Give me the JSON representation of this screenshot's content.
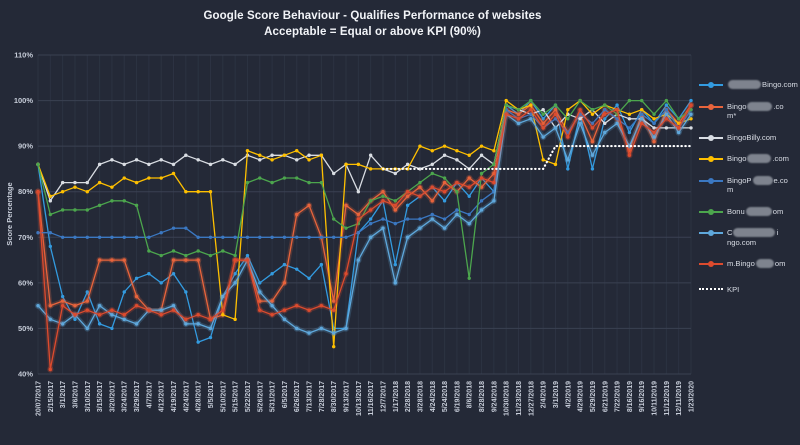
{
  "title": {
    "line1": "Google Score Behaviour - Qualifies Performance of websites",
    "line2": "Acceptable = Equal or above KPI (90%)"
  },
  "colors": {
    "background": "#242937",
    "gridline_horizontal": "#3a4152",
    "gridline_vertical": "#2c3342",
    "axis_text": "#c7cdd9",
    "title_text": "#f2f4f8",
    "kpi_line": "#ffffff"
  },
  "axes": {
    "y_label": "Score Percentage",
    "y_tick_labels": [
      "40%",
      "50%",
      "60%",
      "70%",
      "80%",
      "90%",
      "100%",
      "110%"
    ]
  },
  "legend": {
    "items": [
      {
        "name": "bingo-com",
        "color": "#339be0",
        "type": "series",
        "segments": [
          [
            "blur",
            33
          ],
          [
            "text",
            "Bingo.com"
          ]
        ]
      },
      {
        "name": "bingo-a-com",
        "color": "#e8643c",
        "type": "series",
        "segments": [
          [
            "text",
            "Bingo"
          ],
          [
            "blur",
            25
          ],
          [
            "text",
            ".co"
          ],
          [
            "br"
          ],
          [
            "text",
            "m*"
          ]
        ]
      },
      {
        "name": "bingobilly-com",
        "color": "#d9dde3",
        "type": "series",
        "segments": [
          [
            "text",
            "BingoBilly.com"
          ]
        ]
      },
      {
        "name": "bingo-x-com",
        "color": "#ffc000",
        "type": "series",
        "segments": [
          [
            "text",
            "Bingo"
          ],
          [
            "blur",
            24
          ],
          [
            "text",
            ".com"
          ]
        ]
      },
      {
        "name": "bingopalace-com",
        "color": "#3b78c2",
        "type": "series",
        "segments": [
          [
            "text",
            "BingoP"
          ],
          [
            "blur",
            20
          ],
          [
            "text",
            "e.co"
          ],
          [
            "br"
          ],
          [
            "text",
            "m"
          ]
        ]
      },
      {
        "name": "bonus-com",
        "color": "#4ca64d",
        "type": "series",
        "segments": [
          [
            "text",
            "Bonu"
          ],
          [
            "blur",
            26
          ],
          [
            "text",
            "om"
          ]
        ]
      },
      {
        "name": "c-bingo-com",
        "color": "#5fa8dc",
        "type": "series",
        "segments": [
          [
            "text",
            "C"
          ],
          [
            "blur",
            42
          ],
          [
            "text",
            "i"
          ],
          [
            "br"
          ],
          [
            "text",
            "ngo.com"
          ]
        ]
      },
      {
        "name": "m-bingo-com",
        "color": "#dd4b2e",
        "type": "series",
        "segments": [
          [
            "text",
            "m.Bingo"
          ],
          [
            "blur",
            18
          ],
          [
            "text",
            "om"
          ]
        ]
      },
      {
        "name": "kpi",
        "color": "#ffffff",
        "type": "kpi",
        "segments": [
          [
            "text",
            "KPI"
          ]
        ]
      }
    ]
  },
  "chart_data": {
    "type": "line",
    "title": "Google Score Behaviour - Qualifies Performance of websites",
    "subtitle": "Acceptable = Equal or above KPI (90%)",
    "xlabel": "",
    "ylabel": "Score Percentage",
    "ylim": [
      40,
      110
    ],
    "y_tick_step": 10,
    "grid": true,
    "legend_position": "right",
    "categories": [
      "20/07/2017",
      "2/15/2017",
      "3/1/2017",
      "3/6/2017",
      "3/10/2017",
      "3/15/2017",
      "3/20/2017",
      "3/24/2017",
      "3/29/2017",
      "4/7/2017",
      "4/12/2017",
      "4/19/2017",
      "4/24/2017",
      "4/28/2017",
      "5/5/2017",
      "5/10/2017",
      "5/15/2017",
      "5/22/2017",
      "5/26/2017",
      "5/31/2017",
      "6/5/2017",
      "6/26/2017",
      "7/13/2017",
      "7/28/2017",
      "8/30/2017",
      "9/13/2017",
      "10/13/2017",
      "11/16/2017",
      "12/7/2017",
      "1/17/2018",
      "2/28/2018",
      "3/28/2018",
      "4/24/2018",
      "5/24/2018",
      "6/19/2018",
      "8/6/2018",
      "8/28/2018",
      "9/24/2018",
      "10/30/2018",
      "11/23/2018",
      "12/27/2018",
      "2/4/2019",
      "3/1/2019",
      "4/2/2019",
      "4/29/2019",
      "5/29/2019",
      "6/21/2019",
      "7/22/2019",
      "8/16/2019",
      "9/16/2019",
      "10/11/2019",
      "11/12/2019",
      "12/11/2019",
      "1/23/2020"
    ],
    "series": [
      {
        "name": "Bingo.com",
        "color": "#339be0",
        "glow": false,
        "values": [
          86,
          68,
          57,
          52,
          58,
          51,
          50,
          58,
          61,
          62,
          60,
          62,
          58,
          47,
          48,
          57,
          62,
          66,
          60,
          62,
          64,
          63,
          61,
          64,
          50,
          50,
          71,
          74,
          78,
          64,
          77,
          79,
          81,
          78,
          82,
          79,
          83,
          80,
          99,
          97,
          100,
          96,
          99,
          85,
          97,
          85,
          96,
          99,
          93,
          98,
          95,
          99,
          96,
          100
        ]
      },
      {
        "name": "BingoA___.com*",
        "color": "#e8643c",
        "glow": true,
        "values": [
          80,
          55,
          56,
          55,
          56,
          65,
          65,
          65,
          57,
          54,
          54,
          65,
          65,
          65,
          52,
          53,
          65,
          65,
          56,
          56,
          60,
          75,
          77,
          70,
          56,
          77,
          75,
          78,
          80,
          76,
          79,
          81,
          78,
          82,
          80,
          83,
          81,
          84,
          98,
          97,
          99,
          95,
          98,
          93,
          97,
          91,
          98,
          96,
          89,
          97,
          91,
          98,
          95,
          99
        ]
      },
      {
        "name": "BingoBilly.com",
        "color": "#d9dde3",
        "glow": false,
        "values": [
          86,
          78,
          82,
          82,
          82,
          86,
          87,
          86,
          87,
          86,
          87,
          86,
          88,
          87,
          86,
          87,
          86,
          88,
          87,
          88,
          88,
          87,
          88,
          88,
          84,
          86,
          80,
          88,
          85,
          84,
          86,
          85,
          86,
          88,
          87,
          85,
          88,
          86,
          99,
          98,
          97,
          98,
          94,
          97,
          96,
          98,
          95,
          97,
          96,
          96,
          94,
          94,
          94,
          94
        ]
      },
      {
        "name": "Bingo___.com",
        "color": "#ffc000",
        "glow": false,
        "values": [
          86,
          79,
          80,
          81,
          80,
          82,
          81,
          83,
          82,
          83,
          83,
          84,
          80,
          80,
          80,
          53,
          52,
          89,
          88,
          87,
          88,
          89,
          87,
          88,
          46,
          86,
          86,
          85,
          85,
          85,
          85,
          90,
          89,
          90,
          89,
          88,
          90,
          89,
          100,
          98,
          99,
          87,
          86,
          98,
          100,
          97,
          99,
          98,
          97,
          98,
          96,
          97,
          95,
          96
        ]
      },
      {
        "name": "BingoPalace.com",
        "color": "#3b78c2",
        "glow": false,
        "values": [
          71,
          71,
          70,
          70,
          70,
          70,
          70,
          70,
          70,
          70,
          71,
          72,
          72,
          70,
          70,
          70,
          70,
          70,
          70,
          70,
          70,
          70,
          70,
          70,
          70,
          70,
          71,
          73,
          74,
          73,
          74,
          74,
          75,
          74,
          76,
          75,
          78,
          80,
          98,
          96,
          97,
          94,
          96,
          93,
          97,
          95,
          98,
          96,
          94,
          97,
          95,
          98,
          94,
          98
        ]
      },
      {
        "name": "Bonus___.com",
        "color": "#4ca64d",
        "glow": false,
        "values": [
          86,
          75,
          76,
          76,
          76,
          77,
          78,
          78,
          77,
          67,
          66,
          67,
          66,
          67,
          66,
          67,
          66,
          82,
          83,
          82,
          83,
          83,
          82,
          82,
          74,
          72,
          73,
          78,
          79,
          78,
          80,
          82,
          84,
          83,
          80,
          61,
          84,
          86,
          99,
          98,
          100,
          97,
          99,
          96,
          100,
          98,
          99,
          97,
          100,
          100,
          97,
          100,
          96,
          98
        ]
      },
      {
        "name": "C___bingo.com",
        "color": "#5fa8dc",
        "glow": true,
        "values": [
          55,
          52,
          51,
          53,
          50,
          55,
          53,
          52,
          51,
          54,
          54,
          55,
          51,
          51,
          50,
          57,
          60,
          65,
          58,
          55,
          52,
          50,
          49,
          50,
          49,
          50,
          65,
          70,
          72,
          60,
          70,
          72,
          74,
          72,
          75,
          73,
          76,
          78,
          97,
          95,
          96,
          92,
          94,
          87,
          95,
          88,
          93,
          95,
          90,
          96,
          92,
          97,
          93,
          97
        ]
      },
      {
        "name": "m.Bingo___om",
        "color": "#dd4b2e",
        "glow": true,
        "values": [
          80,
          41,
          55,
          53,
          54,
          53,
          54,
          53,
          55,
          54,
          53,
          54,
          52,
          53,
          52,
          54,
          65,
          65,
          54,
          53,
          54,
          55,
          54,
          55,
          54,
          62,
          74,
          76,
          78,
          77,
          80,
          79,
          81,
          80,
          82,
          81,
          83,
          82,
          97,
          96,
          98,
          94,
          97,
          92,
          98,
          94,
          97,
          98,
          88,
          95,
          93,
          96,
          94,
          99
        ]
      },
      {
        "name": "KPI",
        "color": "#ffffff",
        "style": "dotted",
        "glow": false,
        "values": [
          null,
          null,
          null,
          null,
          null,
          null,
          null,
          null,
          null,
          null,
          null,
          null,
          null,
          null,
          null,
          null,
          null,
          null,
          null,
          null,
          null,
          null,
          null,
          null,
          null,
          null,
          null,
          null,
          85,
          85,
          85,
          85,
          85,
          85,
          85,
          85,
          85,
          85,
          85,
          85,
          85,
          85,
          90,
          90,
          90,
          90,
          90,
          90,
          90,
          90,
          90,
          90,
          90,
          90
        ]
      }
    ]
  }
}
